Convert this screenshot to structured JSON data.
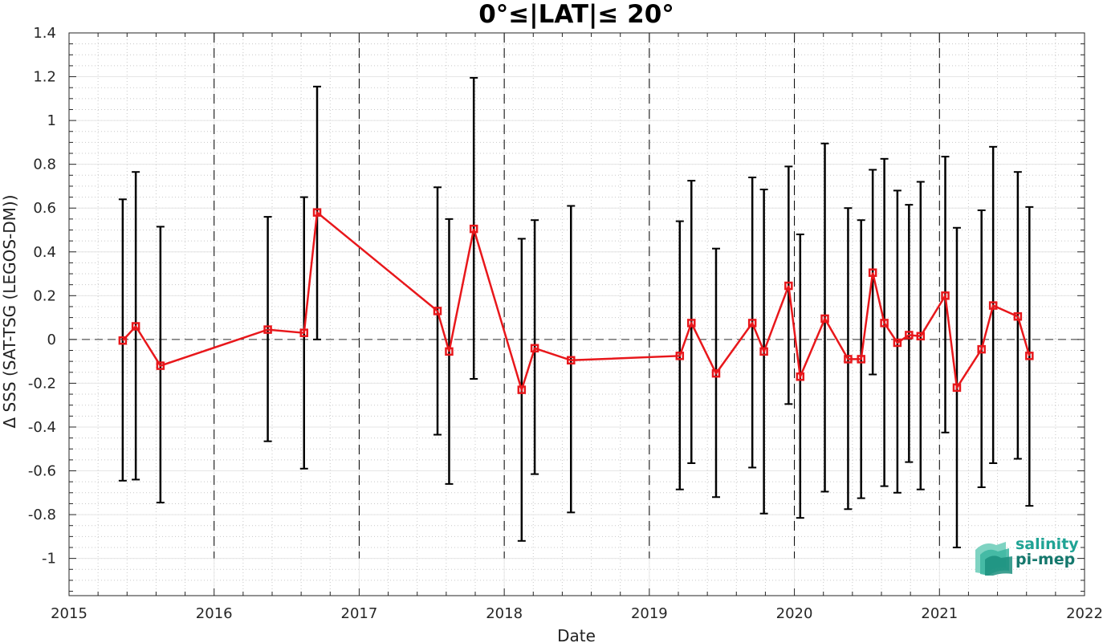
{
  "chart_data": {
    "type": "line",
    "title": "0°≤|LAT|≤ 20°",
    "xlabel": "Date",
    "ylabel": "Δ SSS (SAT-TSG (LEGOS-DM))",
    "xlim": [
      2015,
      2022
    ],
    "ylim": [
      -1.17,
      1.4
    ],
    "x_ticks": [
      "2015",
      "2016",
      "2017",
      "2018",
      "2019",
      "2020",
      "2021",
      "2022"
    ],
    "y_ticks": [
      "1.4",
      "1.2",
      "1",
      "0.8",
      "0.6",
      "0.4",
      "0.2",
      "0",
      "-0.2",
      "-0.4",
      "-0.6",
      "-0.8",
      "-1"
    ],
    "grid": true,
    "year_separators": [
      2016,
      2017,
      2018,
      2019,
      2020,
      2021
    ],
    "zero_line": 0,
    "series_color": "#e8171b",
    "errorbar_color": "#000000",
    "points": [
      {
        "x": 2015.37,
        "y": -0.005,
        "lo": -0.645,
        "hi": 0.64
      },
      {
        "x": 2015.46,
        "y": 0.06,
        "lo": -0.64,
        "hi": 0.765
      },
      {
        "x": 2015.63,
        "y": -0.12,
        "lo": -0.745,
        "hi": 0.515
      },
      {
        "x": 2016.37,
        "y": 0.045,
        "lo": -0.465,
        "hi": 0.56
      },
      {
        "x": 2016.62,
        "y": 0.03,
        "lo": -0.59,
        "hi": 0.65
      },
      {
        "x": 2016.71,
        "y": 0.58,
        "lo": 0.0,
        "hi": 1.155
      },
      {
        "x": 2017.54,
        "y": 0.13,
        "lo": -0.435,
        "hi": 0.695
      },
      {
        "x": 2017.62,
        "y": -0.055,
        "lo": -0.66,
        "hi": 0.55
      },
      {
        "x": 2017.79,
        "y": 0.505,
        "lo": -0.18,
        "hi": 1.195
      },
      {
        "x": 2018.12,
        "y": -0.23,
        "lo": -0.92,
        "hi": 0.46
      },
      {
        "x": 2018.21,
        "y": -0.04,
        "lo": -0.615,
        "hi": 0.545
      },
      {
        "x": 2018.46,
        "y": -0.095,
        "lo": -0.79,
        "hi": 0.61
      },
      {
        "x": 2019.21,
        "y": -0.075,
        "lo": -0.685,
        "hi": 0.54
      },
      {
        "x": 2019.29,
        "y": 0.075,
        "lo": -0.565,
        "hi": 0.725
      },
      {
        "x": 2019.46,
        "y": -0.155,
        "lo": -0.72,
        "hi": 0.415
      },
      {
        "x": 2019.71,
        "y": 0.075,
        "lo": -0.585,
        "hi": 0.74
      },
      {
        "x": 2019.79,
        "y": -0.055,
        "lo": -0.795,
        "hi": 0.685
      },
      {
        "x": 2019.96,
        "y": 0.245,
        "lo": -0.295,
        "hi": 0.79
      },
      {
        "x": 2020.04,
        "y": -0.17,
        "lo": -0.815,
        "hi": 0.48
      },
      {
        "x": 2020.21,
        "y": 0.095,
        "lo": -0.695,
        "hi": 0.895
      },
      {
        "x": 2020.37,
        "y": -0.09,
        "lo": -0.775,
        "hi": 0.6
      },
      {
        "x": 2020.46,
        "y": -0.09,
        "lo": -0.725,
        "hi": 0.545
      },
      {
        "x": 2020.54,
        "y": 0.305,
        "lo": -0.16,
        "hi": 0.775
      },
      {
        "x": 2020.62,
        "y": 0.075,
        "lo": -0.67,
        "hi": 0.825
      },
      {
        "x": 2020.71,
        "y": -0.015,
        "lo": -0.7,
        "hi": 0.68
      },
      {
        "x": 2020.79,
        "y": 0.02,
        "lo": -0.56,
        "hi": 0.615
      },
      {
        "x": 2020.87,
        "y": 0.015,
        "lo": -0.685,
        "hi": 0.72
      },
      {
        "x": 2021.04,
        "y": 0.2,
        "lo": -0.425,
        "hi": 0.835
      },
      {
        "x": 2021.12,
        "y": -0.22,
        "lo": -0.95,
        "hi": 0.51
      },
      {
        "x": 2021.29,
        "y": -0.045,
        "lo": -0.675,
        "hi": 0.59
      },
      {
        "x": 2021.37,
        "y": 0.155,
        "lo": -0.565,
        "hi": 0.88
      },
      {
        "x": 2021.54,
        "y": 0.105,
        "lo": -0.545,
        "hi": 0.765
      },
      {
        "x": 2021.62,
        "y": -0.075,
        "lo": -0.76,
        "hi": 0.605
      }
    ]
  },
  "logo": {
    "line1": "salinity",
    "line2": "pi-mep"
  }
}
